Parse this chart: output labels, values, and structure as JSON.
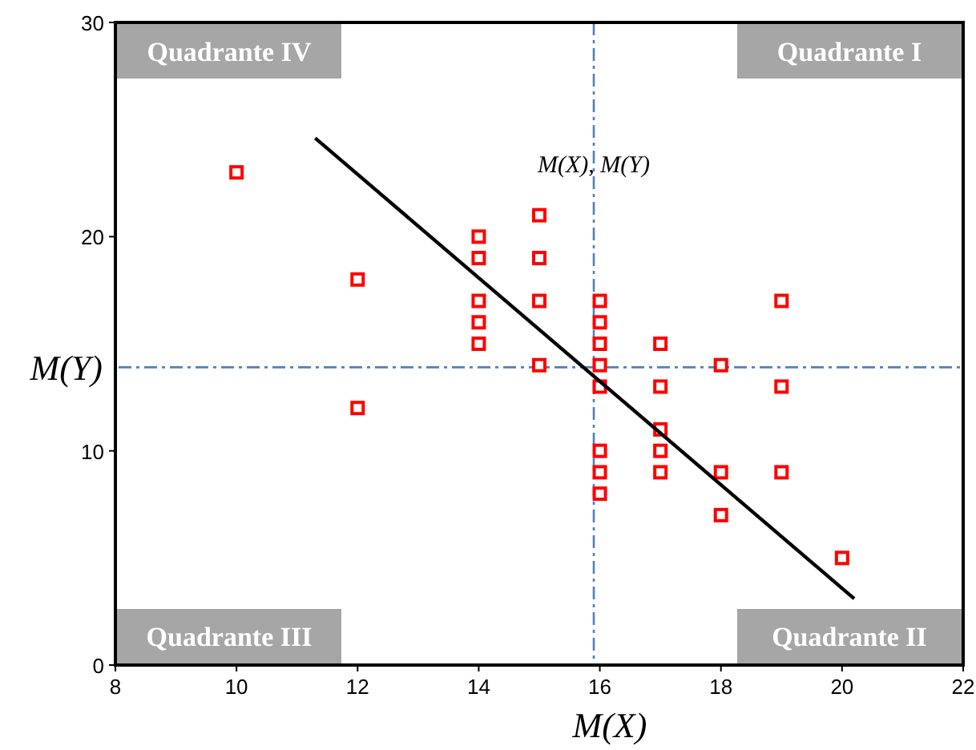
{
  "chart_data": {
    "type": "scatter",
    "marker": "square",
    "grid": false,
    "xlim": [
      8,
      22
    ],
    "xticks": [
      8,
      10,
      12,
      14,
      16,
      18,
      20,
      22
    ],
    "ylim": [
      0,
      30
    ],
    "yticks": [
      0,
      10,
      20,
      30
    ],
    "series": [
      {
        "color": "#ff0000",
        "x": [
          10,
          12,
          12,
          14,
          14,
          14,
          14,
          14,
          15,
          15,
          15,
          15,
          16,
          16,
          16,
          16,
          16,
          16,
          16,
          16,
          17,
          17,
          17,
          17,
          17,
          18,
          18,
          18,
          19,
          19,
          19,
          20
        ],
        "values": [
          23,
          18,
          12,
          20,
          19,
          17,
          16,
          15,
          21,
          19,
          17,
          14,
          17,
          16,
          15,
          14,
          13,
          10,
          9,
          8,
          15,
          13,
          11,
          10,
          9,
          14,
          9,
          7,
          17,
          13,
          9,
          5
        ]
      },
      {
        "type": "line",
        "color": "#000000",
        "marker": "none",
        "x": [
          11.3,
          20.2
        ],
        "values": [
          24.6,
          3.1
        ]
      }
    ],
    "ref_lines": [
      {
        "axis": "x",
        "value": 15.9,
        "label": "M(X)",
        "color": "#4f81bd",
        "line_style": "dashdot"
      },
      {
        "axis": "y",
        "value": 13.9,
        "label": "M(Y)",
        "color": "#4f81bd",
        "line_style": "dashdot"
      }
    ],
    "annotations": [
      "Quadrante IV",
      "Quadrante I",
      "Quadrante III",
      "Quadrante II",
      {
        "text": "M(X), M(Y)",
        "x": 15.9,
        "y": 23
      }
    ]
  }
}
